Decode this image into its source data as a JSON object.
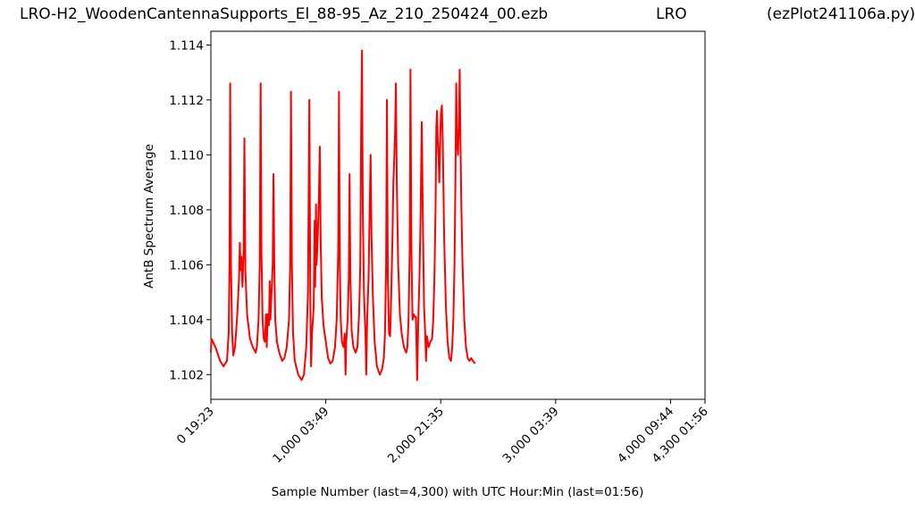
{
  "header": {
    "file_title": "LRO-H2_WoodenCantennaSupports_El_88-95_Az_210_250424_00.ezb",
    "station": "LRO",
    "script": "(ezPlot241106a.py)"
  },
  "chart_data": {
    "type": "line",
    "title": "",
    "xlabel": "Sample Number (last=4,300) with UTC Hour:Min (last=01:56)",
    "ylabel": "AntB Spectrum Average",
    "xlim": [
      0,
      4300
    ],
    "ylim": [
      1.1011,
      1.1145
    ],
    "grid": false,
    "line_color": "#ff0000",
    "y_ticks": [
      "1.102",
      "1.104",
      "1.106",
      "1.108",
      "1.110",
      "1.112",
      "1.114"
    ],
    "y_tick_values": [
      1.102,
      1.104,
      1.106,
      1.108,
      1.11,
      1.112,
      1.114
    ],
    "x_ticks": [
      {
        "value": 0,
        "label": "0  19:23"
      },
      {
        "value": 1000,
        "label": "1,000  03:49"
      },
      {
        "value": 2000,
        "label": "2,000  21:35"
      },
      {
        "value": 3000,
        "label": "3,000  03:39"
      },
      {
        "value": 4000,
        "label": "4,000  09:44"
      },
      {
        "value": 4300,
        "label": "4,300  01:56"
      }
    ],
    "series": [
      {
        "values": [
          [
            0,
            1.1028
          ],
          [
            5,
            1.1033
          ],
          [
            40,
            1.103
          ],
          [
            80,
            1.1025
          ],
          [
            110,
            1.1023
          ],
          [
            140,
            1.1025
          ],
          [
            155,
            1.1035
          ],
          [
            162,
            1.106
          ],
          [
            168,
            1.1126
          ],
          [
            175,
            1.106
          ],
          [
            185,
            1.1035
          ],
          [
            195,
            1.1027
          ],
          [
            210,
            1.103
          ],
          [
            230,
            1.1042
          ],
          [
            245,
            1.1055
          ],
          [
            252,
            1.1068
          ],
          [
            258,
            1.1058
          ],
          [
            265,
            1.1063
          ],
          [
            275,
            1.1052
          ],
          [
            285,
            1.1065
          ],
          [
            292,
            1.1106
          ],
          [
            300,
            1.1058
          ],
          [
            315,
            1.1042
          ],
          [
            340,
            1.1033
          ],
          [
            365,
            1.103
          ],
          [
            390,
            1.1028
          ],
          [
            400,
            1.103
          ],
          [
            415,
            1.104
          ],
          [
            425,
            1.106
          ],
          [
            433,
            1.1126
          ],
          [
            440,
            1.1065
          ],
          [
            450,
            1.104
          ],
          [
            460,
            1.1033
          ],
          [
            470,
            1.1032
          ],
          [
            480,
            1.1042
          ],
          [
            486,
            1.103
          ],
          [
            495,
            1.1042
          ],
          [
            505,
            1.1038
          ],
          [
            512,
            1.1054
          ],
          [
            518,
            1.104
          ],
          [
            528,
            1.105
          ],
          [
            538,
            1.106
          ],
          [
            545,
            1.1093
          ],
          [
            552,
            1.106
          ],
          [
            560,
            1.104
          ],
          [
            575,
            1.1032
          ],
          [
            595,
            1.1028
          ],
          [
            620,
            1.1025
          ],
          [
            640,
            1.1026
          ],
          [
            660,
            1.103
          ],
          [
            680,
            1.104
          ],
          [
            690,
            1.106
          ],
          [
            697,
            1.1123
          ],
          [
            705,
            1.106
          ],
          [
            715,
            1.1035
          ],
          [
            730,
            1.1025
          ],
          [
            760,
            1.102
          ],
          [
            790,
            1.1018
          ],
          [
            810,
            1.102
          ],
          [
            830,
            1.103
          ],
          [
            845,
            1.105
          ],
          [
            857,
            1.112
          ],
          [
            865,
            1.105
          ],
          [
            872,
            1.1023
          ],
          [
            880,
            1.1035
          ],
          [
            888,
            1.104
          ],
          [
            895,
            1.1045
          ],
          [
            903,
            1.1076
          ],
          [
            908,
            1.1052
          ],
          [
            915,
            1.1082
          ],
          [
            920,
            1.106
          ],
          [
            930,
            1.107
          ],
          [
            940,
            1.1085
          ],
          [
            948,
            1.1103
          ],
          [
            955,
            1.107
          ],
          [
            965,
            1.1048
          ],
          [
            980,
            1.1038
          ],
          [
            1000,
            1.1032
          ],
          [
            1020,
            1.1026
          ],
          [
            1040,
            1.1024
          ],
          [
            1060,
            1.1025
          ],
          [
            1080,
            1.103
          ],
          [
            1095,
            1.104
          ],
          [
            1108,
            1.1065
          ],
          [
            1115,
            1.1123
          ],
          [
            1122,
            1.106
          ],
          [
            1130,
            1.104
          ],
          [
            1140,
            1.1032
          ],
          [
            1155,
            1.103
          ],
          [
            1165,
            1.1035
          ],
          [
            1172,
            1.102
          ],
          [
            1178,
            1.1032
          ],
          [
            1190,
            1.104
          ],
          [
            1200,
            1.1055
          ],
          [
            1207,
            1.1093
          ],
          [
            1214,
            1.1055
          ],
          [
            1225,
            1.1036
          ],
          [
            1240,
            1.103
          ],
          [
            1260,
            1.1028
          ],
          [
            1275,
            1.103
          ],
          [
            1290,
            1.1042
          ],
          [
            1300,
            1.106
          ],
          [
            1308,
            1.111
          ],
          [
            1315,
            1.1138
          ],
          [
            1322,
            1.108
          ],
          [
            1332,
            1.105
          ],
          [
            1345,
            1.1035
          ],
          [
            1352,
            1.102
          ],
          [
            1360,
            1.104
          ],
          [
            1372,
            1.1055
          ],
          [
            1382,
            1.108
          ],
          [
            1390,
            1.11
          ],
          [
            1398,
            1.107
          ],
          [
            1410,
            1.1048
          ],
          [
            1425,
            1.1032
          ],
          [
            1445,
            1.1023
          ],
          [
            1470,
            1.102
          ],
          [
            1490,
            1.1022
          ],
          [
            1505,
            1.1026
          ],
          [
            1515,
            1.1035
          ],
          [
            1525,
            1.106
          ],
          [
            1532,
            1.112
          ],
          [
            1540,
            1.1055
          ],
          [
            1550,
            1.1035
          ],
          [
            1560,
            1.1034
          ],
          [
            1570,
            1.105
          ],
          [
            1580,
            1.107
          ],
          [
            1588,
            1.109
          ],
          [
            1595,
            1.1098
          ],
          [
            1603,
            1.1108
          ],
          [
            1610,
            1.1126
          ],
          [
            1618,
            1.109
          ],
          [
            1630,
            1.106
          ],
          [
            1645,
            1.1042
          ],
          [
            1660,
            1.1035
          ],
          [
            1680,
            1.103
          ],
          [
            1700,
            1.1028
          ],
          [
            1710,
            1.103
          ],
          [
            1720,
            1.104
          ],
          [
            1730,
            1.1065
          ],
          [
            1737,
            1.1131
          ],
          [
            1745,
            1.1065
          ],
          [
            1755,
            1.104
          ],
          [
            1765,
            1.1042
          ],
          [
            1775,
            1.1041
          ],
          [
            1785,
            1.1041
          ],
          [
            1795,
            1.1018
          ],
          [
            1805,
            1.104
          ],
          [
            1815,
            1.1055
          ],
          [
            1825,
            1.1078
          ],
          [
            1835,
            1.1112
          ],
          [
            1845,
            1.1075
          ],
          [
            1855,
            1.1045
          ],
          [
            1865,
            1.1035
          ],
          [
            1872,
            1.1025
          ],
          [
            1880,
            1.1034
          ],
          [
            1895,
            1.103
          ],
          [
            1910,
            1.1032
          ],
          [
            1925,
            1.1033
          ],
          [
            1935,
            1.104
          ],
          [
            1945,
            1.1055
          ],
          [
            1955,
            1.108
          ],
          [
            1962,
            1.111
          ],
          [
            1968,
            1.1116
          ],
          [
            1975,
            1.1105
          ],
          [
            1982,
            1.1098
          ],
          [
            1988,
            1.109
          ],
          [
            1995,
            1.1105
          ],
          [
            2002,
            1.1115
          ],
          [
            2010,
            1.1118
          ],
          [
            2018,
            1.1105
          ],
          [
            2030,
            1.107
          ],
          [
            2045,
            1.1045
          ],
          [
            2060,
            1.1032
          ],
          [
            2075,
            1.1026
          ],
          [
            2090,
            1.1025
          ],
          [
            2100,
            1.103
          ],
          [
            2110,
            1.104
          ],
          [
            2120,
            1.106
          ],
          [
            2128,
            1.109
          ],
          [
            2135,
            1.1126
          ],
          [
            2142,
            1.1105
          ],
          [
            2150,
            1.11
          ],
          [
            2158,
            1.111
          ],
          [
            2165,
            1.1131
          ],
          [
            2172,
            1.1105
          ],
          [
            2180,
            1.108
          ],
          [
            2190,
            1.106
          ],
          [
            2205,
            1.104
          ],
          [
            2220,
            1.103
          ],
          [
            2235,
            1.1026
          ],
          [
            2250,
            1.1025
          ],
          [
            2265,
            1.1026
          ],
          [
            2280,
            1.1025
          ],
          [
            2300,
            1.1024
          ]
        ]
      }
    ]
  }
}
